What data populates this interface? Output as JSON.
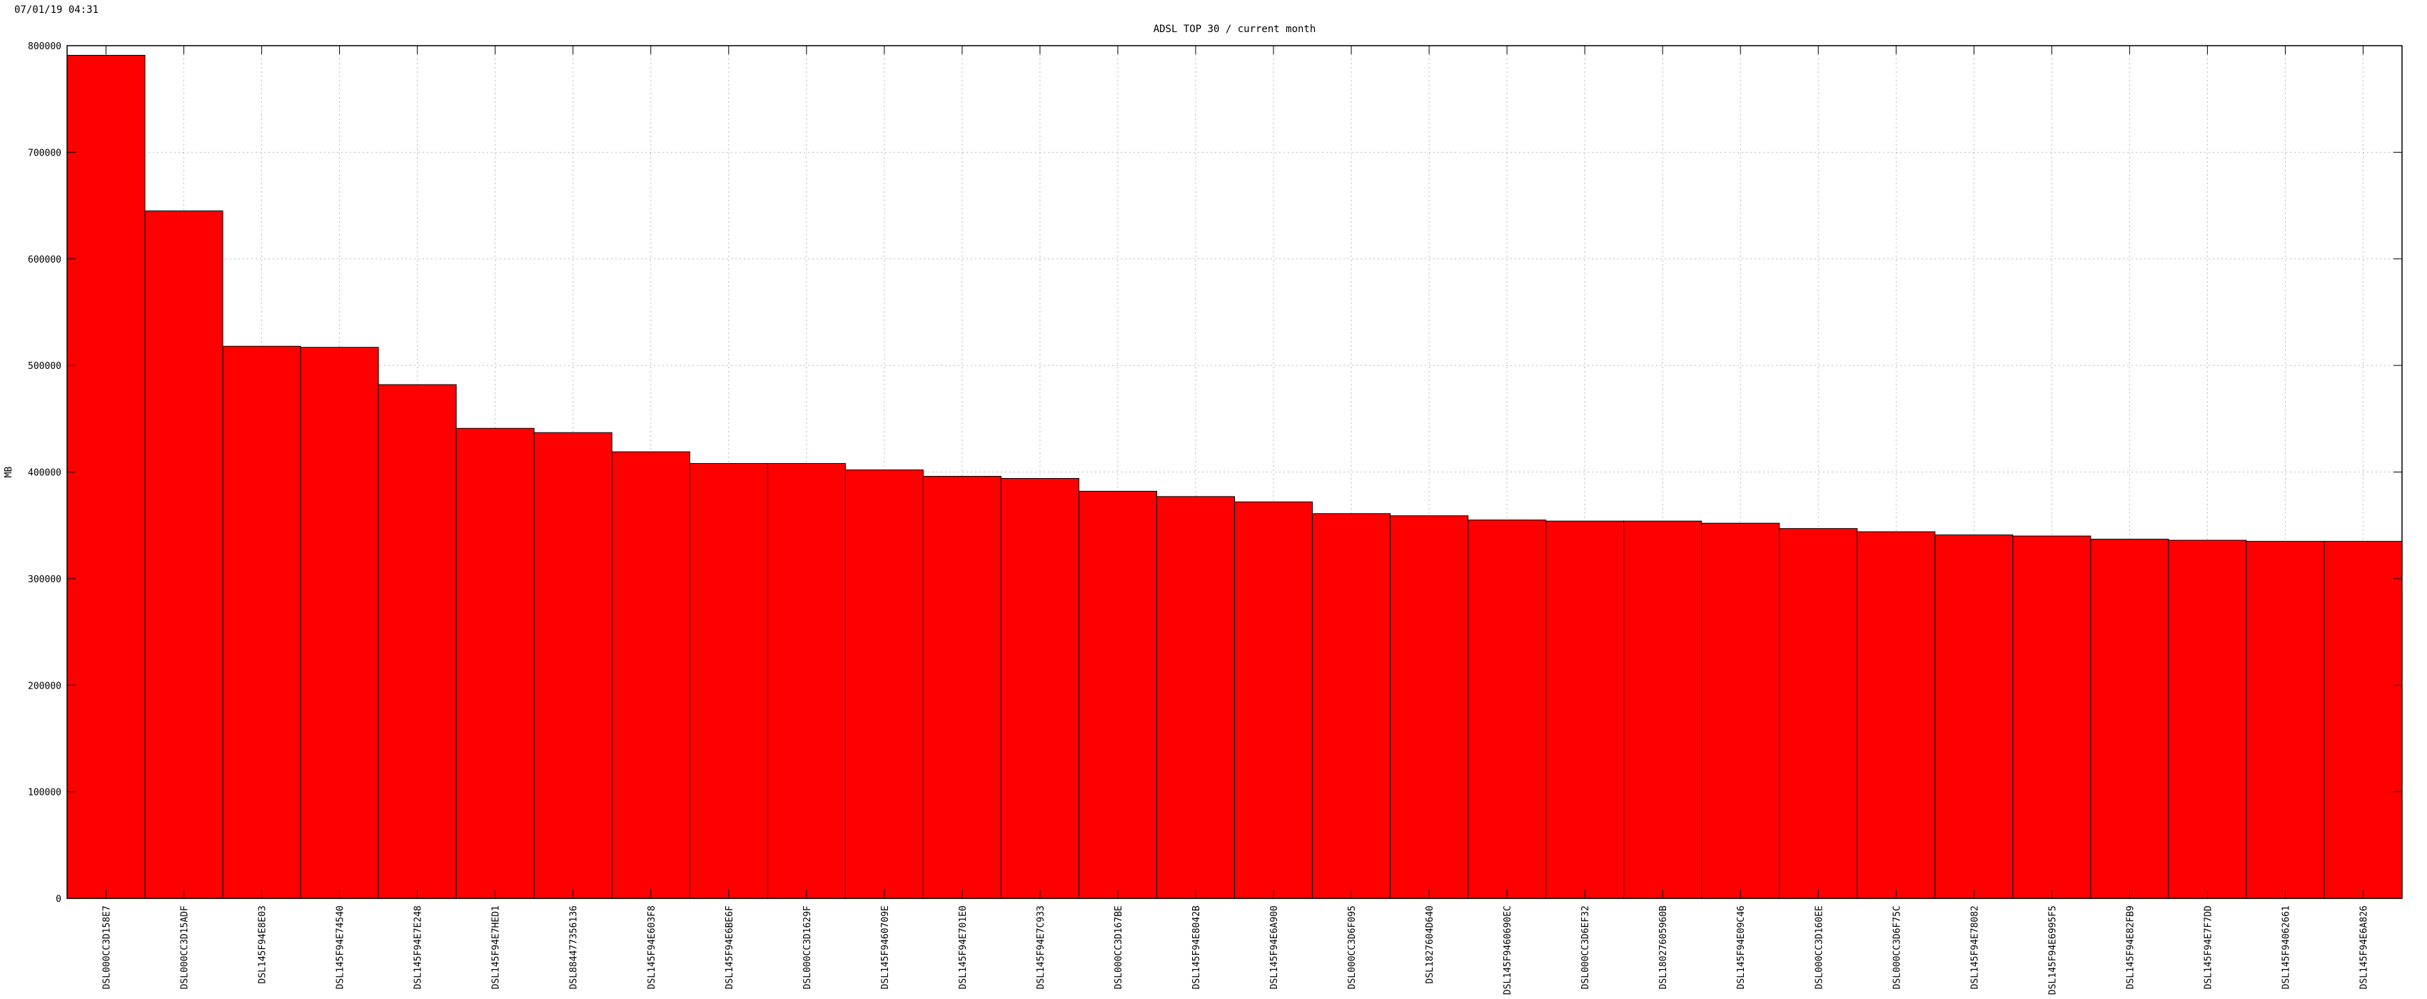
{
  "timestamp": "07/01/19 04:31",
  "chart_data": {
    "type": "bar",
    "title": "ADSL TOP 30 / current month",
    "xlabel": "",
    "ylabel": "MB",
    "ylim": [
      0,
      800000
    ],
    "yticks": [
      "0",
      "100000",
      "200000",
      "300000",
      "400000",
      "500000",
      "600000",
      "700000",
      "800000"
    ],
    "grid": true,
    "bar_color": "#ff0000",
    "categories": [
      "DSL000CC3D158E7",
      "DSL000CC3D15ADF",
      "DSL145F94E8E03",
      "DSL145F94E74540",
      "DSL145F94E7E248",
      "DSL145F94E7HED1",
      "DSL884477356136",
      "DSL145F94E603F8",
      "DSL145F94E6BE6F",
      "DSL000CC3D1629F",
      "DSL145F9460709E",
      "DSL145F94E701E0",
      "DSL145F94E7C933",
      "DSL000CC3D167BE",
      "DSL145F94E8042B",
      "DSL145F94E6A900",
      "DSL000CC3D6F095",
      "DSL1827604D640",
      "DSL145F9460690EC",
      "DSL000CC3D6EF32",
      "DSL18027605960B",
      "DSL145F94E09C46",
      "DSL000CC3D160EE",
      "DSL000CC3D6F75C",
      "DSL145F94E78082",
      "DSL145F94E6995F5",
      "DSL145F94E82FB9",
      "DSL145F94E7F7DD",
      "DSL145F94062661",
      "DSL145F94E6A826"
    ],
    "values": [
      791000,
      645000,
      518000,
      517000,
      482000,
      441000,
      437000,
      419000,
      408000,
      408000,
      402000,
      396000,
      394000,
      382000,
      377000,
      372000,
      361000,
      359000,
      355000,
      354000,
      354000,
      352000,
      347000,
      344000,
      341000,
      340000,
      337000,
      336000,
      335000,
      335000
    ]
  }
}
